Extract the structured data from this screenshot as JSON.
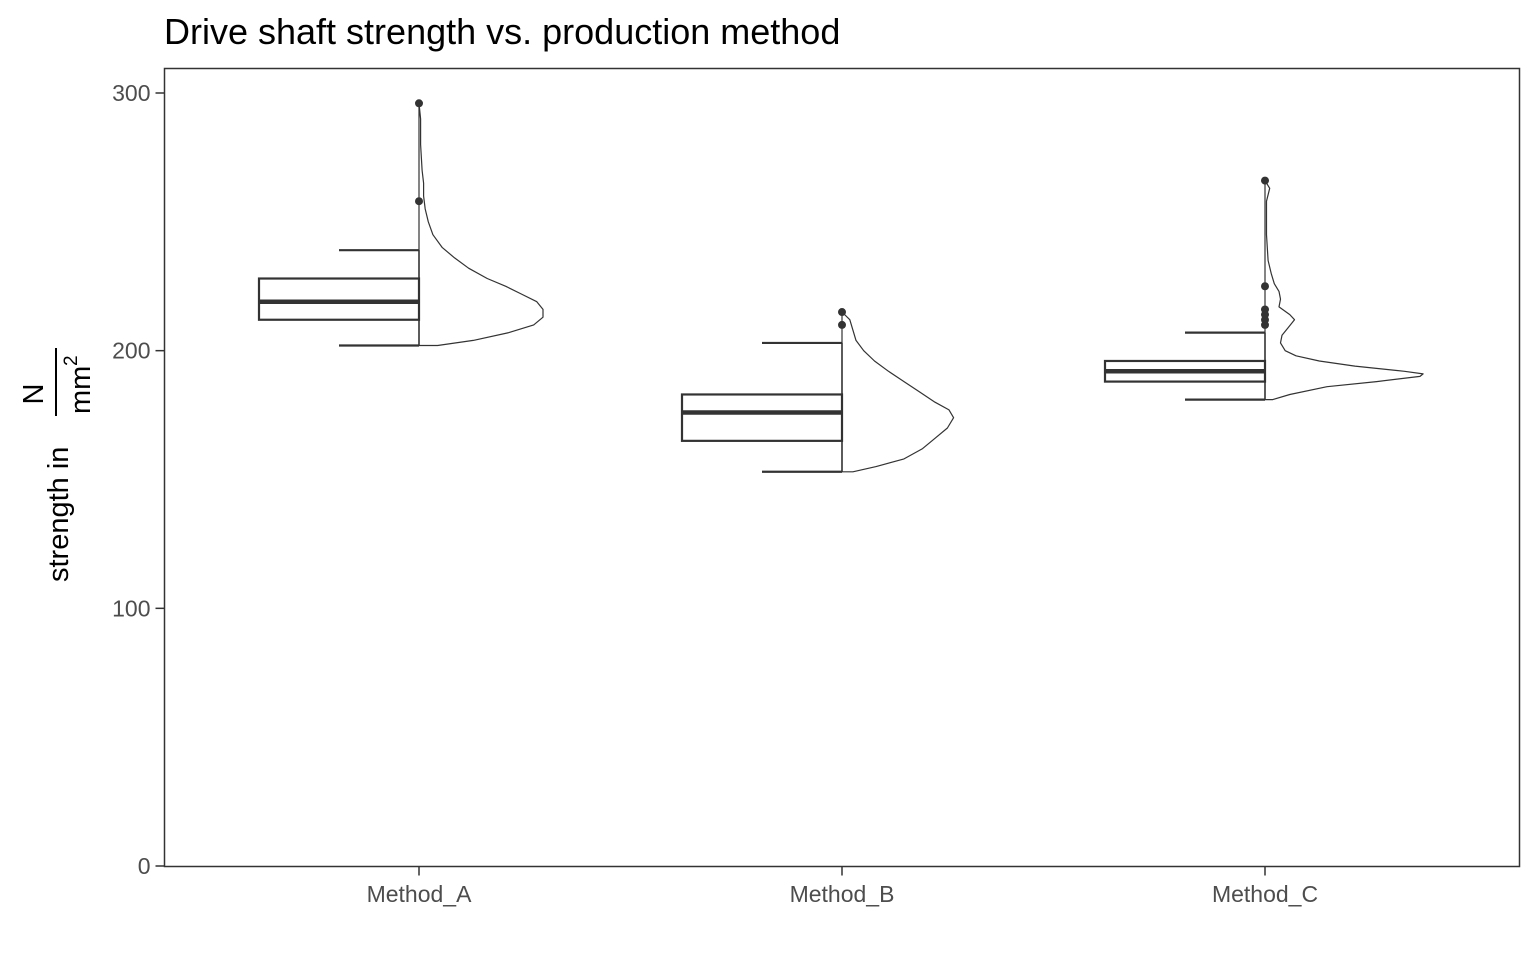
{
  "chart_data": {
    "type": "boxplot",
    "title": "Drive shaft strength vs. production method",
    "xlabel": "",
    "ylabel": {
      "prefix": "strength in",
      "numerator": "N",
      "denominator": "mm",
      "exponent": "2"
    },
    "ylim": [
      0,
      300
    ],
    "yticks": [
      0,
      100,
      200,
      300
    ],
    "grid": false,
    "categories": [
      "Method_A",
      "Method_B",
      "Method_C"
    ],
    "boxes": [
      {
        "category": "Method_A",
        "min": 202,
        "q1": 212,
        "median": 219,
        "q3": 228,
        "max": 239,
        "outliers": [
          258,
          296
        ]
      },
      {
        "category": "Method_B",
        "min": 153,
        "q1": 165,
        "median": 176,
        "q3": 183,
        "max": 203,
        "outliers": [
          210,
          215
        ]
      },
      {
        "category": "Method_C",
        "min": 181,
        "q1": 188,
        "median": 192,
        "q3": 196,
        "max": 207,
        "outliers": [
          210,
          212,
          214,
          216,
          225,
          266
        ]
      }
    ],
    "densities": [
      {
        "category": "Method_A",
        "profile": [
          [
            202,
            0.12
          ],
          [
            204,
            0.35
          ],
          [
            207,
            0.58
          ],
          [
            210,
            0.74
          ],
          [
            213,
            0.8
          ],
          [
            216,
            0.8
          ],
          [
            219,
            0.76
          ],
          [
            222,
            0.66
          ],
          [
            225,
            0.56
          ],
          [
            228,
            0.44
          ],
          [
            232,
            0.32
          ],
          [
            236,
            0.23
          ],
          [
            240,
            0.15
          ],
          [
            245,
            0.09
          ],
          [
            250,
            0.06
          ],
          [
            255,
            0.04
          ],
          [
            260,
            0.03
          ],
          [
            265,
            0.03
          ],
          [
            270,
            0.02
          ],
          [
            280,
            0.01
          ],
          [
            290,
            0.01
          ],
          [
            296,
            0
          ]
        ]
      },
      {
        "category": "Method_B",
        "profile": [
          [
            153,
            0.07
          ],
          [
            155,
            0.22
          ],
          [
            158,
            0.4
          ],
          [
            162,
            0.52
          ],
          [
            166,
            0.6
          ],
          [
            170,
            0.68
          ],
          [
            174,
            0.72
          ],
          [
            177,
            0.69
          ],
          [
            180,
            0.6
          ],
          [
            184,
            0.5
          ],
          [
            188,
            0.4
          ],
          [
            192,
            0.3
          ],
          [
            196,
            0.21
          ],
          [
            200,
            0.14
          ],
          [
            204,
            0.09
          ],
          [
            208,
            0.07
          ],
          [
            212,
            0.05
          ],
          [
            215,
            0
          ]
        ]
      },
      {
        "category": "Method_C",
        "profile": [
          [
            181,
            0.05
          ],
          [
            183,
            0.16
          ],
          [
            186,
            0.4
          ],
          [
            188,
            0.72
          ],
          [
            190,
            1.0
          ],
          [
            191,
            1.02
          ],
          [
            192,
            0.9
          ],
          [
            194,
            0.58
          ],
          [
            196,
            0.35
          ],
          [
            198,
            0.2
          ],
          [
            200,
            0.13
          ],
          [
            203,
            0.1
          ],
          [
            206,
            0.11
          ],
          [
            209,
            0.15
          ],
          [
            212,
            0.19
          ],
          [
            214,
            0.16
          ],
          [
            217,
            0.09
          ],
          [
            220,
            0.1
          ],
          [
            223,
            0.09
          ],
          [
            226,
            0.06
          ],
          [
            230,
            0.04
          ],
          [
            235,
            0.02
          ],
          [
            245,
            0.01
          ],
          [
            258,
            0.01
          ],
          [
            263,
            0.03
          ],
          [
            266,
            0
          ]
        ]
      }
    ],
    "colors": {
      "stroke": "#333333",
      "panel_border": "#333333",
      "tick_text": "#4d4d4d",
      "background": "#ffffff"
    }
  }
}
